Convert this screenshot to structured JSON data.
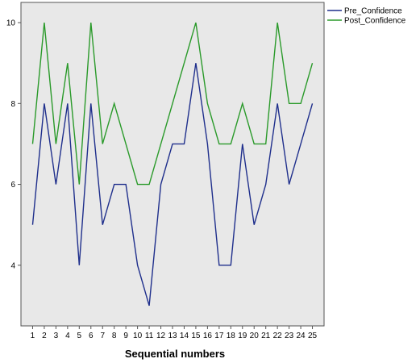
{
  "chart_data": {
    "type": "line",
    "title": "",
    "xlabel": "Sequential numbers",
    "ylabel": "",
    "x": [
      1,
      2,
      3,
      4,
      5,
      6,
      7,
      8,
      9,
      10,
      11,
      12,
      13,
      14,
      15,
      16,
      17,
      18,
      19,
      20,
      21,
      22,
      23,
      24,
      25
    ],
    "xlim": [
      0,
      26
    ],
    "ylim": [
      2.5,
      10.5
    ],
    "yticks": [
      4,
      6,
      8,
      10
    ],
    "grid": false,
    "legend_position": "top-right outside",
    "plot_background": "#e8e8e8",
    "series": [
      {
        "name": "Pre_Confidence",
        "color": "#1f2f8c",
        "values": [
          5,
          8,
          6,
          8,
          4,
          8,
          5,
          6,
          6,
          4,
          3,
          6,
          7,
          7,
          9,
          7,
          4,
          4,
          7,
          5,
          6,
          8,
          6,
          7,
          8
        ]
      },
      {
        "name": "Post_Confidence",
        "color": "#2a9a2a",
        "values": [
          7,
          10,
          7,
          9,
          6,
          10,
          7,
          8,
          7,
          6,
          6,
          7,
          8,
          9,
          10,
          8,
          7,
          7,
          8,
          7,
          7,
          10,
          8,
          8,
          9
        ]
      }
    ]
  }
}
